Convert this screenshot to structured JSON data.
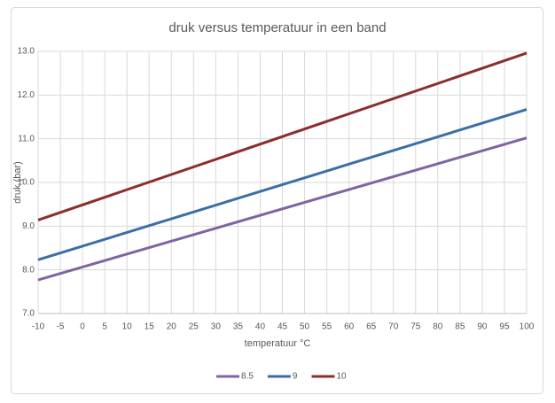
{
  "chart_data": {
    "type": "line",
    "title": "druk versus temperatuur in een band",
    "x_label": "temperatuur °C",
    "y_label": "druk (bar)",
    "x": [
      -10,
      100
    ],
    "series": [
      {
        "name": "8.5",
        "color": "#8064a2",
        "values": [
          7.77,
          11.02
        ]
      },
      {
        "name": "9",
        "color": "#3c6ea5",
        "values": [
          8.23,
          11.67
        ]
      },
      {
        "name": "10",
        "color": "#8b2e2e",
        "values": [
          9.14,
          12.96
        ]
      }
    ],
    "xlim": [
      -10,
      100
    ],
    "xticks": [
      -10,
      -5,
      0,
      5,
      10,
      15,
      20,
      25,
      30,
      35,
      40,
      45,
      50,
      55,
      60,
      65,
      70,
      75,
      80,
      85,
      90,
      95,
      100
    ],
    "ylim": [
      7,
      13
    ],
    "yticks": [
      {
        "value": 7,
        "label": "7.0"
      },
      {
        "value": 8,
        "label": "8.0"
      },
      {
        "value": 9,
        "label": "9.0"
      },
      {
        "value": 10,
        "label": "10.0"
      },
      {
        "value": 11,
        "label": "11.0"
      },
      {
        "value": 12,
        "label": "12.0"
      },
      {
        "value": 13,
        "label": "13.0"
      }
    ],
    "grid": true,
    "legend": "bottom"
  }
}
